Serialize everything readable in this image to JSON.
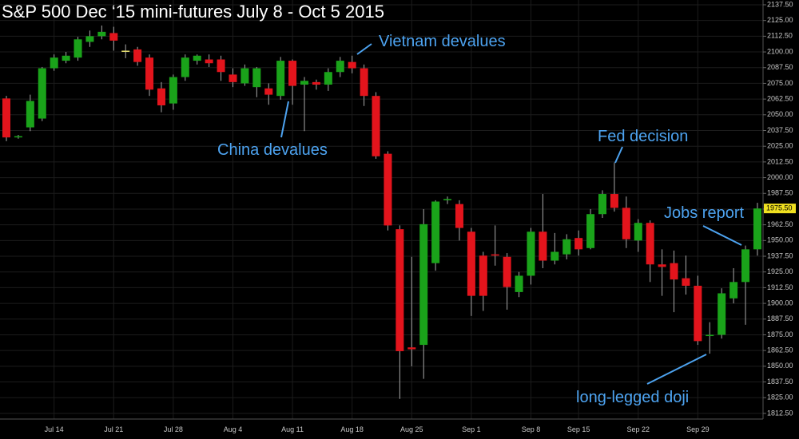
{
  "chart_data": {
    "type": "candlestick",
    "title": "S&P 500 Dec ‘15 mini-futures July 8 - Oct 5 2015",
    "categories": [
      null,
      null,
      null,
      null,
      "Jul 14",
      null,
      null,
      null,
      null,
      "Jul 21",
      null,
      null,
      null,
      null,
      "Jul 28",
      null,
      null,
      null,
      null,
      "Aug 4",
      null,
      null,
      null,
      null,
      "Aug 11",
      null,
      null,
      null,
      null,
      "Aug 18",
      null,
      null,
      null,
      null,
      "Aug 25",
      null,
      null,
      null,
      null,
      "Sep 1",
      null,
      null,
      null,
      null,
      "Sep 8",
      null,
      null,
      null,
      "Sep 15",
      null,
      null,
      null,
      null,
      "Sep 22",
      null,
      null,
      null,
      null,
      "Sep 29",
      null,
      null,
      null,
      null,
      null
    ],
    "open": [
      2063,
      2032,
      2040,
      2047,
      2087,
      2093,
      2095.5,
      2108,
      2112.5,
      2115,
      2101,
      2102,
      2095.5,
      2071,
      2059,
      2080,
      2093,
      2094,
      2094,
      2082,
      2075,
      2072,
      2071,
      2065,
      2093,
      2074,
      2076,
      2074,
      2084,
      2092,
      2087,
      2065,
      2019,
      1959,
      1865,
      1867,
      1932,
      1982,
      1979,
      1957,
      1938,
      1939,
      1937,
      1909,
      1922,
      1957,
      1934,
      1939,
      1952,
      1944,
      1971,
      1987,
      1976,
      1950,
      1964,
      1931,
      1932,
      1920,
      1914,
      1874,
      1875,
      1904,
      1917,
      1943
    ],
    "high": [
      2065,
      2034,
      2066,
      2088,
      2098,
      2100,
      2112,
      2117,
      2121,
      2120,
      2106,
      2104,
      2098,
      2076,
      2082,
      2098,
      2098,
      2098,
      2097,
      2087,
      2090,
      2088,
      2075,
      2096,
      2094,
      2080,
      2078,
      2087,
      2096,
      2097,
      2090,
      2068,
      2021,
      1962,
      1937,
      1975,
      1982,
      1985,
      1982,
      1960,
      1941,
      1962,
      1940,
      1925,
      1960,
      1987,
      1956,
      1955,
      1958,
      1975,
      1990,
      2012,
      1985,
      1967,
      1966,
      1943,
      1942,
      1938,
      1922,
      1885,
      1912,
      1928,
      1946,
      1980
    ],
    "low": [
      2029,
      2031,
      2037,
      2045,
      2085,
      2091,
      2093,
      2104,
      2110,
      2101,
      2095,
      2089,
      2065,
      2052,
      2054,
      2077,
      2090,
      2088,
      2077,
      2072,
      2073,
      2064,
      2058,
      2062,
      2058,
      2037,
      2070,
      2069,
      2080,
      2083,
      2057,
      2015,
      1958,
      1824,
      1850,
      1840,
      1926,
      1979,
      1950,
      1890,
      1894,
      1930,
      1895,
      1905,
      1915,
      1928,
      1931,
      1935,
      1938,
      1943,
      1968,
      1973,
      1944,
      1941,
      1917,
      1906,
      1893,
      1907,
      1867,
      1860,
      1872,
      1900,
      1883,
      1938
    ],
    "close": [
      2032,
      2033,
      2061,
      2087,
      2095.5,
      2097,
      2110,
      2112.5,
      2116,
      2109,
      2101,
      2092,
      2070,
      2057.5,
      2080,
      2095.5,
      2097,
      2091,
      2084,
      2076,
      2087,
      2087,
      2066,
      2093,
      2073,
      2077,
      2074,
      2084,
      2093,
      2087,
      2065,
      2017,
      1962,
      1862,
      1863.5,
      1963,
      1981,
      1983,
      1960,
      1906,
      1906,
      1938,
      1913,
      1922,
      1957,
      1934,
      1941,
      1951,
      1943,
      1971,
      1987,
      1976,
      1951,
      1964,
      1931,
      1929,
      1919,
      1914,
      1870,
      1875,
      1908,
      1917,
      1943,
      1975.5
    ],
    "up_color": "#1aa31a",
    "down_color": "#e3141c",
    "ylim": [
      1808,
      2141.3
    ],
    "yticks": [
      {
        "value": 1812.5,
        "label": "1812.50"
      },
      {
        "value": 1825,
        "label": "1825.00"
      },
      {
        "value": 1837.5,
        "label": "1837.50"
      },
      {
        "value": 1850,
        "label": "1850.00"
      },
      {
        "value": 1862.5,
        "label": "1862.50"
      },
      {
        "value": 1875,
        "label": "1875.00"
      },
      {
        "value": 1887.5,
        "label": "1887.50"
      },
      {
        "value": 1900,
        "label": "1900.00"
      },
      {
        "value": 1912.5,
        "label": "1912.50"
      },
      {
        "value": 1925,
        "label": "1925.00"
      },
      {
        "value": 1937.5,
        "label": "1937.50"
      },
      {
        "value": 1950,
        "label": "1950.00"
      },
      {
        "value": 1962.5,
        "label": "1962.50"
      },
      {
        "value": 1975,
        "label": "1975.00"
      },
      {
        "value": 1987.5,
        "label": "1987.50"
      },
      {
        "value": 2000,
        "label": "2000.00"
      },
      {
        "value": 2012.5,
        "label": "2012.50"
      },
      {
        "value": 2025,
        "label": "2025.00"
      },
      {
        "value": 2037.5,
        "label": "2037.50"
      },
      {
        "value": 2050,
        "label": "2050.00"
      },
      {
        "value": 2062.5,
        "label": "2062.50"
      },
      {
        "value": 2075,
        "label": "2075.00"
      },
      {
        "value": 2087.5,
        "label": "2087.50"
      },
      {
        "value": 2100,
        "label": "2100.00"
      },
      {
        "value": 2112.5,
        "label": "2112.50"
      },
      {
        "value": 2125,
        "label": "2125.00"
      },
      {
        "value": 2137.5,
        "label": "2137.50"
      }
    ],
    "last_price": {
      "value": 1975.5,
      "label": "1975.50"
    },
    "annotations": [
      "Vietnam devalues",
      "China devalues",
      "Fed decision",
      "Jobs report",
      "long-legged doji"
    ]
  }
}
